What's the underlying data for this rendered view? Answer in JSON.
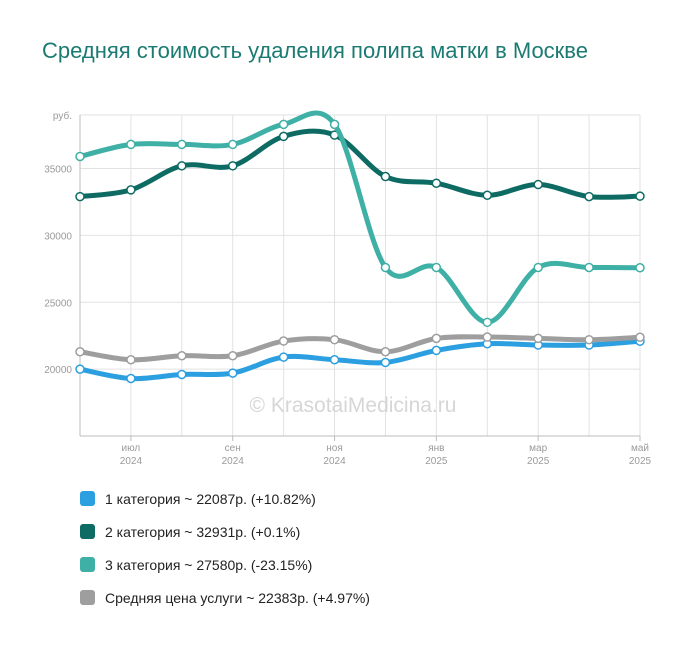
{
  "title": "Средняя стоимость удаления полипа матки в Москве",
  "watermark": "© KrasotaiMedicina.ru",
  "chart_data": {
    "type": "line",
    "ylabel": "руб.",
    "ylim": [
      15000,
      39000
    ],
    "yticks": [
      20000,
      25000,
      30000,
      35000
    ],
    "grid": true,
    "x": [
      "2024-06",
      "2024-07",
      "2024-08",
      "2024-09",
      "2024-10",
      "2024-11",
      "2024-12",
      "2025-01",
      "2025-02",
      "2025-03",
      "2025-04",
      "2025-05"
    ],
    "xtick_labels": [
      {
        "month": "июл",
        "year": "2024"
      },
      {
        "month": "сен",
        "year": "2024"
      },
      {
        "month": "ноя",
        "year": "2024"
      },
      {
        "month": "янв",
        "year": "2025"
      },
      {
        "month": "мар",
        "year": "2025"
      },
      {
        "month": "май",
        "year": "2025"
      }
    ],
    "series": [
      {
        "name": "1 категория",
        "color": "#2b9fe0",
        "values": [
          20000,
          19300,
          19600,
          19700,
          20900,
          20700,
          20500,
          21400,
          21900,
          21800,
          21800,
          22087
        ]
      },
      {
        "name": "2 категория",
        "color": "#0d6b63",
        "values": [
          32900,
          33400,
          35200,
          35200,
          37400,
          37500,
          34400,
          33900,
          33000,
          33800,
          32900,
          32931
        ]
      },
      {
        "name": "3 категория",
        "color": "#3fb0a5",
        "values": [
          35900,
          36800,
          36800,
          36800,
          38300,
          38300,
          27600,
          27600,
          23500,
          27600,
          27600,
          27580
        ]
      },
      {
        "name": "Средняя цена услуги",
        "color": "#9e9e9e",
        "values": [
          21300,
          20700,
          21000,
          21000,
          22100,
          22200,
          21300,
          22300,
          22400,
          22300,
          22200,
          22383
        ]
      }
    ],
    "legend_position": "bottom"
  },
  "legend": [
    {
      "label": "1 категория ~ 22087р. (+10.82%)",
      "color": "#2b9fe0"
    },
    {
      "label": "2 категория ~ 32931р. (+0.1%)",
      "color": "#0d6b63"
    },
    {
      "label": "3 категория ~ 27580р. (-23.15%)",
      "color": "#3fb0a5"
    },
    {
      "label": "Средняя цена услуги ~ 22383р. (+4.97%)",
      "color": "#9e9e9e"
    }
  ]
}
